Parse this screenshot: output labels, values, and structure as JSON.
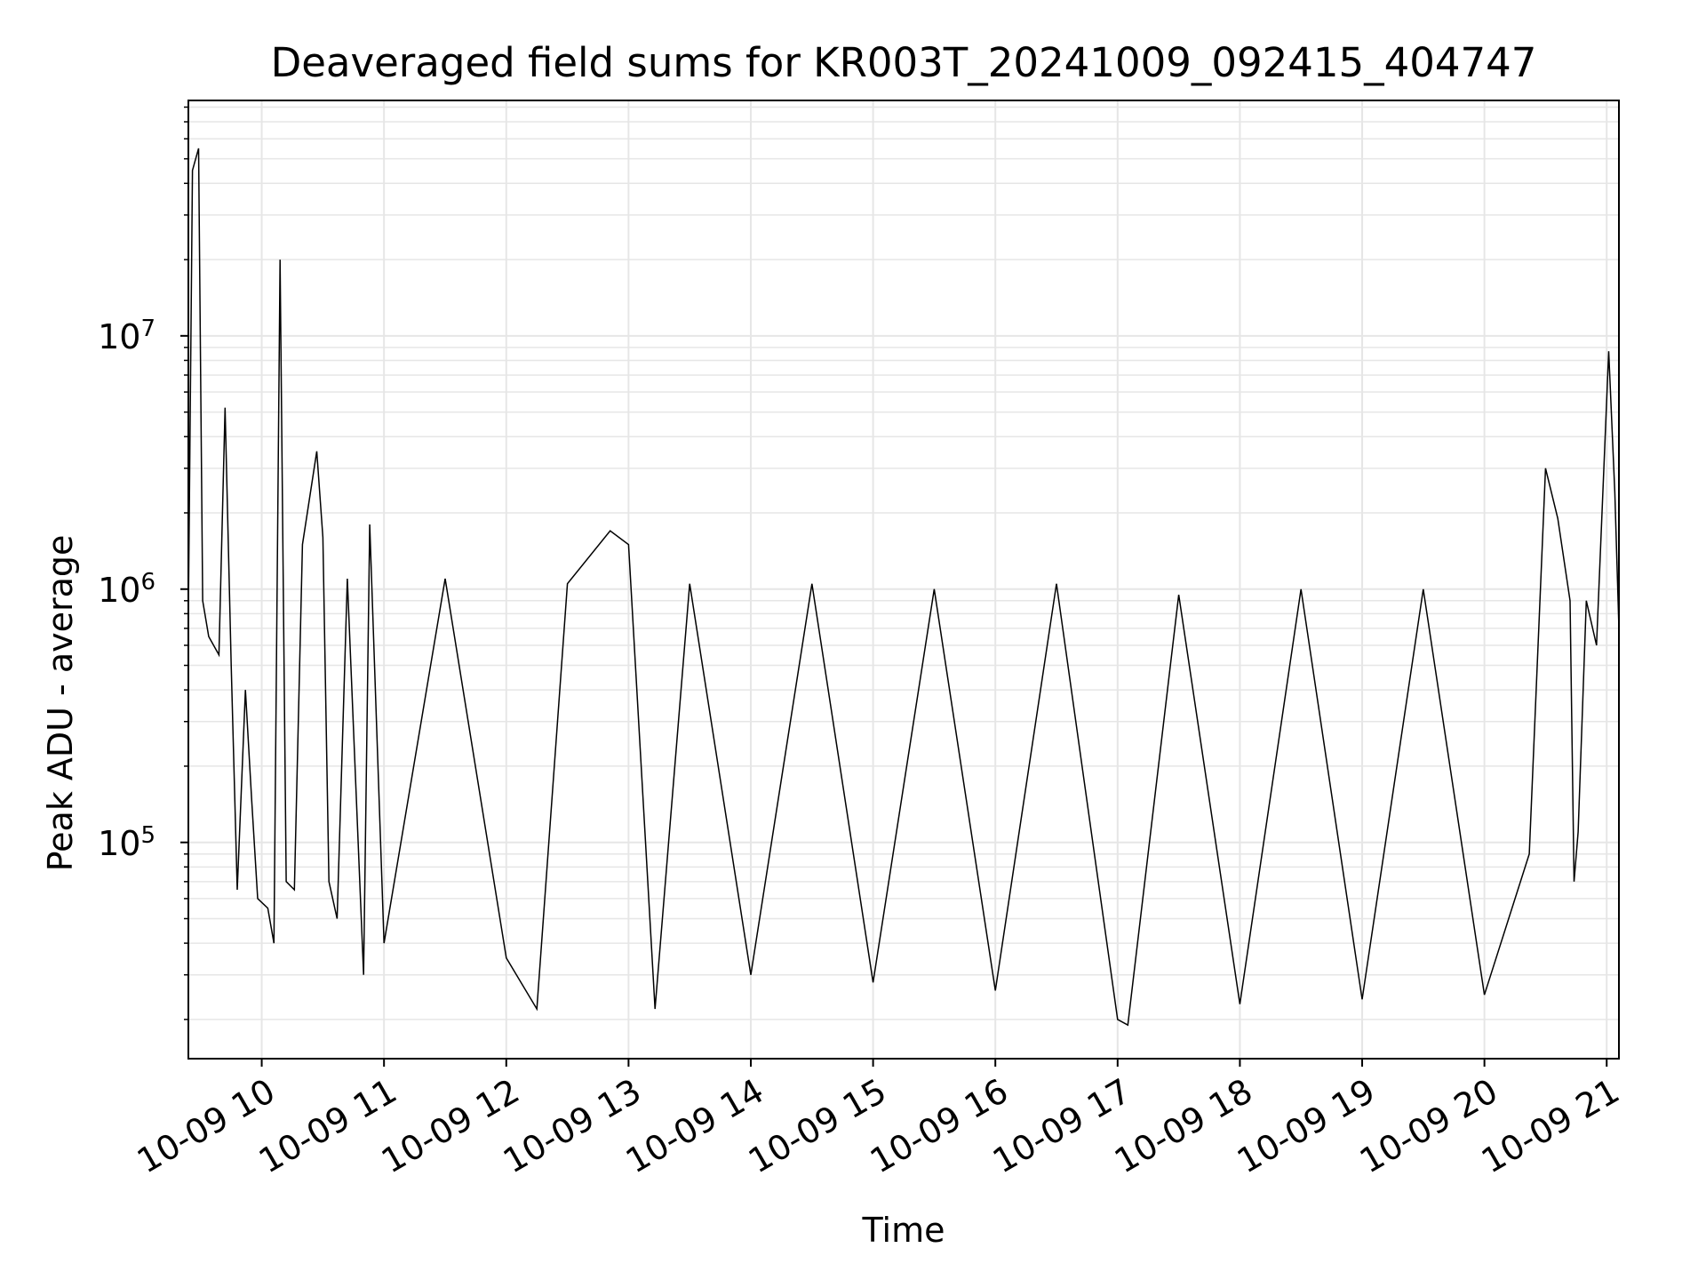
{
  "chart_data": {
    "type": "line",
    "title": "Deaveraged field sums for KR003T_20241009_092415_404747",
    "xlabel": "Time",
    "ylabel": "Peak ADU - average",
    "y_scale": "log",
    "ylim": [
      14000,
      85000000
    ],
    "xlim": [
      "2024-10-09 09:24",
      "2024-10-09 21:06"
    ],
    "grid": true,
    "line_color": "#000000",
    "grid_color": "#e6e6e6",
    "x_ticks": [
      "10-09 10",
      "10-09 11",
      "10-09 12",
      "10-09 13",
      "10-09 14",
      "10-09 15",
      "10-09 16",
      "10-09 17",
      "10-09 18",
      "10-09 19",
      "10-09 20",
      "10-09 21"
    ],
    "y_ticks": [
      {
        "value": 100000,
        "base": "10",
        "exp": "5"
      },
      {
        "value": 1000000,
        "base": "10",
        "exp": "6"
      },
      {
        "value": 10000000,
        "base": "10",
        "exp": "7"
      }
    ],
    "series": [
      {
        "points": [
          [
            "2024-10-09 09:24",
            800000
          ],
          [
            "2024-10-09 09:26",
            45000000
          ],
          [
            "2024-10-09 09:29",
            55000000
          ],
          [
            "2024-10-09 09:31",
            900000
          ],
          [
            "2024-10-09 09:34",
            650000
          ],
          [
            "2024-10-09 09:39",
            550000
          ],
          [
            "2024-10-09 09:42",
            5200000
          ],
          [
            "2024-10-09 09:45",
            500000
          ],
          [
            "2024-10-09 09:48",
            65000
          ],
          [
            "2024-10-09 09:52",
            400000
          ],
          [
            "2024-10-09 09:55",
            150000
          ],
          [
            "2024-10-09 09:58",
            60000
          ],
          [
            "2024-10-09 10:03",
            55000
          ],
          [
            "2024-10-09 10:06",
            40000
          ],
          [
            "2024-10-09 10:09",
            20000000
          ],
          [
            "2024-10-09 10:12",
            70000
          ],
          [
            "2024-10-09 10:16",
            65000
          ],
          [
            "2024-10-09 10:20",
            1500000
          ],
          [
            "2024-10-09 10:27",
            3500000
          ],
          [
            "2024-10-09 10:30",
            1600000
          ],
          [
            "2024-10-09 10:33",
            70000
          ],
          [
            "2024-10-09 10:37",
            50000
          ],
          [
            "2024-10-09 10:42",
            1100000
          ],
          [
            "2024-10-09 10:50",
            30000
          ],
          [
            "2024-10-09 10:53",
            1800000
          ],
          [
            "2024-10-09 11:00",
            40000
          ],
          [
            "2024-10-09 11:30",
            1100000
          ],
          [
            "2024-10-09 12:00",
            35000
          ],
          [
            "2024-10-09 12:15",
            22000
          ],
          [
            "2024-10-09 12:30",
            1050000
          ],
          [
            "2024-10-09 12:51",
            1700000
          ],
          [
            "2024-10-09 13:00",
            1500000
          ],
          [
            "2024-10-09 13:13",
            22000
          ],
          [
            "2024-10-09 13:30",
            1050000
          ],
          [
            "2024-10-09 14:00",
            30000
          ],
          [
            "2024-10-09 14:30",
            1050000
          ],
          [
            "2024-10-09 15:00",
            28000
          ],
          [
            "2024-10-09 15:30",
            1000000
          ],
          [
            "2024-10-09 16:00",
            26000
          ],
          [
            "2024-10-09 16:30",
            1050000
          ],
          [
            "2024-10-09 17:00",
            20000
          ],
          [
            "2024-10-09 17:05",
            19000
          ],
          [
            "2024-10-09 17:30",
            950000
          ],
          [
            "2024-10-09 18:00",
            23000
          ],
          [
            "2024-10-09 18:30",
            1000000
          ],
          [
            "2024-10-09 19:00",
            24000
          ],
          [
            "2024-10-09 19:30",
            1000000
          ],
          [
            "2024-10-09 20:00",
            25000
          ],
          [
            "2024-10-09 20:22",
            90000
          ],
          [
            "2024-10-09 20:30",
            3000000
          ],
          [
            "2024-10-09 20:36",
            1900000
          ],
          [
            "2024-10-09 20:42",
            900000
          ],
          [
            "2024-10-09 20:44",
            70000
          ],
          [
            "2024-10-09 20:46",
            110000
          ],
          [
            "2024-10-09 20:50",
            900000
          ],
          [
            "2024-10-09 20:55",
            600000
          ],
          [
            "2024-10-09 21:01",
            8700000
          ],
          [
            "2024-10-09 21:04",
            2400000
          ],
          [
            "2024-10-09 21:06",
            700000
          ]
        ]
      }
    ]
  }
}
